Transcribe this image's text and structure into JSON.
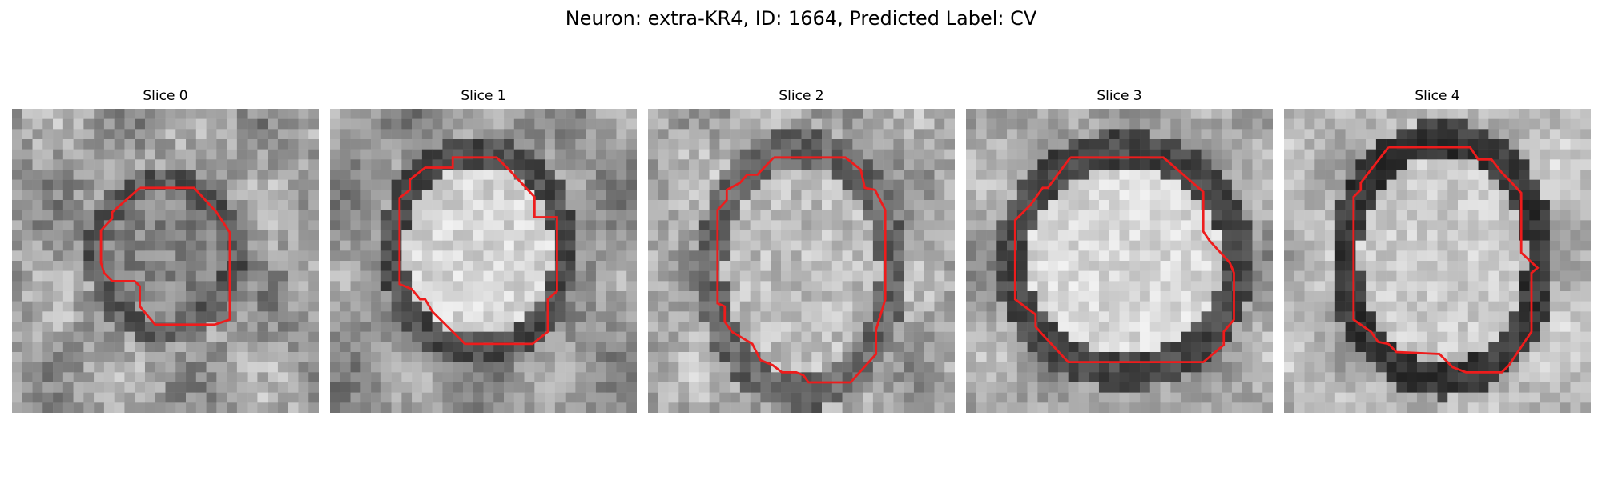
{
  "figure": {
    "title": "Neuron: extra-KR4, ID: 1664, Predicted Label: CV"
  },
  "contour_color": "#ee1c1c",
  "slices": [
    {
      "label": "Slice 0"
    },
    {
      "label": "Slice 1"
    },
    {
      "label": "Slice 2"
    },
    {
      "label": "Slice 3"
    },
    {
      "label": "Slice 4"
    }
  ]
}
